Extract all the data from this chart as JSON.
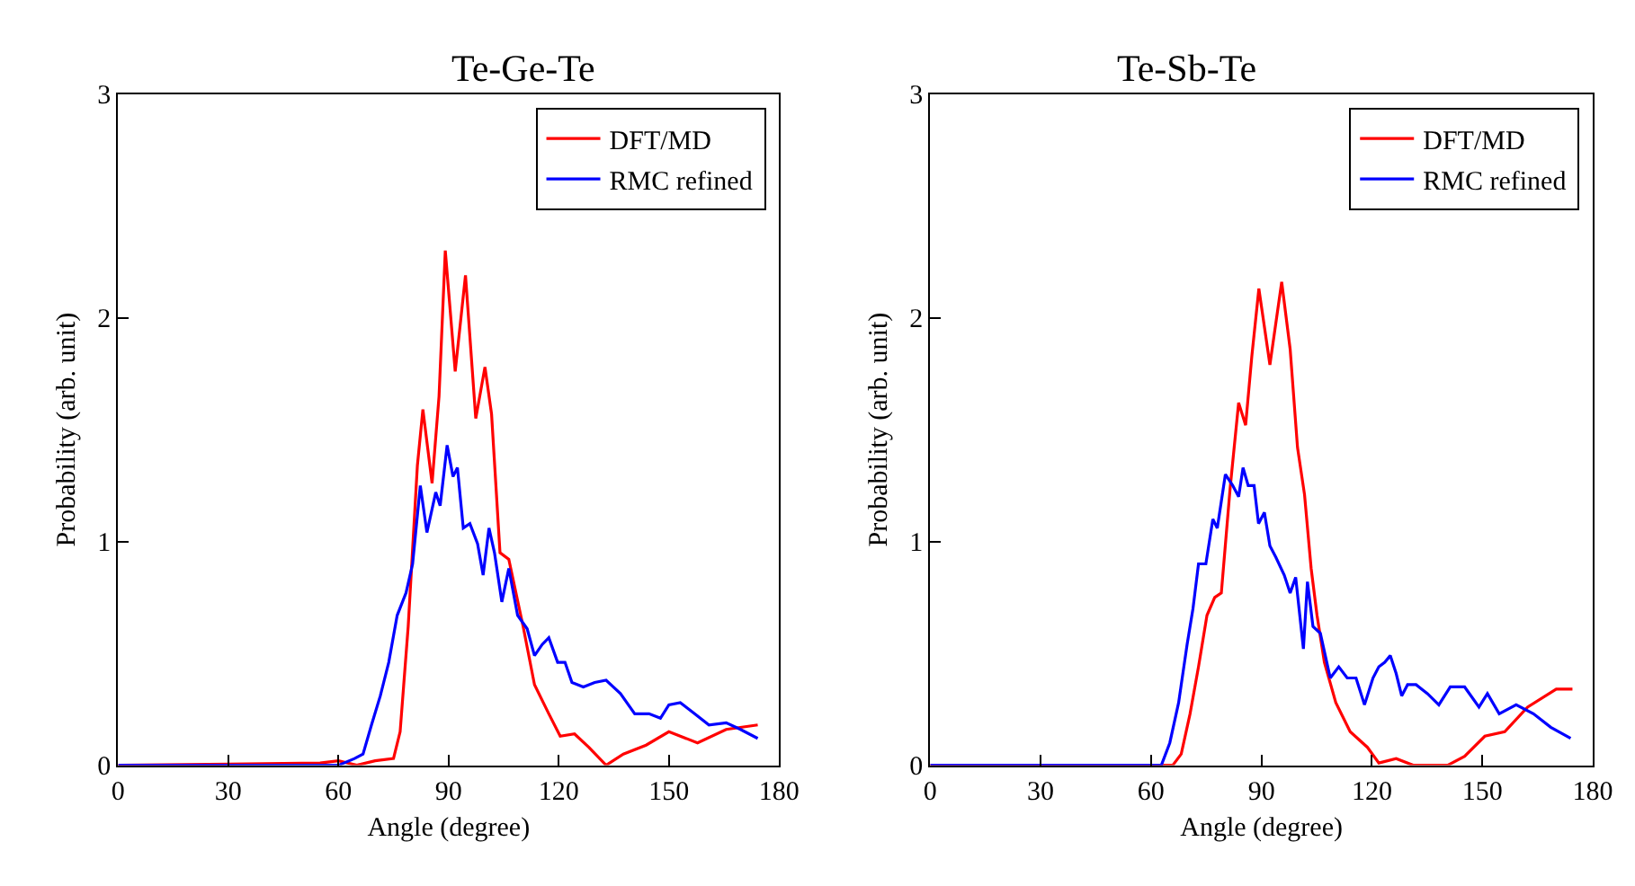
{
  "chart_data": [
    {
      "type": "line",
      "title": "Te-Ge-Te",
      "xlabel": "Angle (degree)",
      "ylabel": "Probability (arb. unit)",
      "xlim": [
        0,
        180
      ],
      "ylim": [
        0,
        3
      ],
      "xticks": [
        0,
        30,
        60,
        90,
        120,
        150,
        180
      ],
      "yticks": [
        0,
        1,
        2,
        3
      ],
      "legend": "top right",
      "line_style": "solid",
      "series": [
        {
          "name": "DFT/MD",
          "color": "#ff0000",
          "x": [
            0,
            55,
            60,
            65,
            70,
            75,
            76.8,
            79,
            81.5,
            83,
            85.5,
            87.4,
            89.1,
            91.8,
            94.6,
            97.4,
            99.9,
            101.7,
            104,
            106.4,
            110.3,
            113.4,
            117.3,
            120.4,
            124.3,
            128.2,
            132.9,
            137.6,
            143.8,
            150,
            157.8,
            165.6,
            174.2
          ],
          "values": [
            0,
            0.01,
            0.02,
            0,
            0.02,
            0.03,
            0.15,
            0.62,
            1.34,
            1.59,
            1.26,
            1.65,
            2.3,
            1.76,
            2.19,
            1.55,
            1.78,
            1.57,
            0.95,
            0.92,
            0.62,
            0.36,
            0.23,
            0.13,
            0.14,
            0.08,
            0,
            0.05,
            0.09,
            0.15,
            0.1,
            0.16,
            0.18
          ]
        },
        {
          "name": "RMC refined",
          "color": "#0000ff",
          "x": [
            0,
            60,
            64.4,
            66.7,
            69,
            71.4,
            73.7,
            76,
            78.4,
            80.2,
            82.3,
            84.1,
            86.5,
            87.7,
            89.6,
            91.2,
            92.4,
            94,
            95.8,
            97.9,
            99.4,
            101,
            102.5,
            104.5,
            106.4,
            108.8,
            111.4,
            113.4,
            115.5,
            117.3,
            119.7,
            121.7,
            123.6,
            126.7,
            129.8,
            132.9,
            136.8,
            140.7,
            144.6,
            147.7,
            150,
            153.1,
            157,
            160.9,
            165.6,
            169.5,
            174.2
          ],
          "values": [
            0,
            0,
            0.03,
            0.05,
            0.18,
            0.31,
            0.46,
            0.67,
            0.77,
            0.9,
            1.25,
            1.04,
            1.22,
            1.16,
            1.43,
            1.29,
            1.33,
            1.06,
            1.08,
            0.99,
            0.85,
            1.06,
            0.95,
            0.73,
            0.88,
            0.67,
            0.61,
            0.49,
            0.54,
            0.57,
            0.46,
            0.46,
            0.37,
            0.35,
            0.37,
            0.38,
            0.32,
            0.23,
            0.23,
            0.21,
            0.27,
            0.28,
            0.23,
            0.18,
            0.19,
            0.16,
            0.12
          ]
        }
      ]
    },
    {
      "type": "line",
      "title": "Te-Sb-Te",
      "xlabel": "Angle (degree)",
      "ylabel": "Probability (arb. unit)",
      "xlim": [
        0,
        180
      ],
      "ylim": [
        0,
        3
      ],
      "xticks": [
        0,
        30,
        60,
        90,
        120,
        150,
        180
      ],
      "yticks": [
        0,
        1,
        2,
        3
      ],
      "legend": "top right",
      "line_style": "solid",
      "series": [
        {
          "name": "DFT/MD",
          "color": "#ff0000",
          "x": [
            0,
            65.9,
            68.2,
            70.6,
            72.9,
            75.2,
            77.3,
            79.1,
            81.5,
            83.8,
            85.7,
            87.4,
            89.3,
            92.3,
            95.5,
            97.8,
            99.8,
            101.7,
            103.5,
            105.1,
            107.1,
            110.2,
            114.1,
            118.8,
            121.9,
            126.6,
            131.2,
            140.6,
            145.2,
            150.7,
            156.1,
            162.3,
            170.1,
            174.5
          ],
          "values": [
            0,
            0,
            0.05,
            0.23,
            0.44,
            0.67,
            0.75,
            0.77,
            1.24,
            1.62,
            1.52,
            1.83,
            2.13,
            1.79,
            2.16,
            1.86,
            1.42,
            1.21,
            0.88,
            0.67,
            0.46,
            0.28,
            0.15,
            0.08,
            0.01,
            0.03,
            0,
            0,
            0.04,
            0.13,
            0.15,
            0.26,
            0.34,
            0.34
          ]
        },
        {
          "name": "RMC refined",
          "color": "#0000ff",
          "x": [
            0,
            62.8,
            65.1,
            67.5,
            69.8,
            71.4,
            72.9,
            74.9,
            76.8,
            78,
            80.2,
            82.2,
            83.8,
            85,
            86.4,
            88,
            89.2,
            90.8,
            92.3,
            93.9,
            96.2,
            97.8,
            99.3,
            101.4,
            102.5,
            104,
            106,
            108.7,
            111,
            113.3,
            115.7,
            118,
            120.3,
            121.9,
            123.5,
            125,
            126.6,
            128.1,
            129.7,
            132,
            135.1,
            138.2,
            141.3,
            145.2,
            149.1,
            151.4,
            154.6,
            159.2,
            163.9,
            168.6,
            174
          ],
          "values": [
            0,
            0,
            0.1,
            0.28,
            0.54,
            0.7,
            0.9,
            0.9,
            1.1,
            1.06,
            1.3,
            1.25,
            1.2,
            1.33,
            1.25,
            1.25,
            1.08,
            1.13,
            0.98,
            0.93,
            0.85,
            0.77,
            0.84,
            0.52,
            0.82,
            0.62,
            0.59,
            0.39,
            0.44,
            0.39,
            0.39,
            0.27,
            0.39,
            0.44,
            0.46,
            0.49,
            0.41,
            0.31,
            0.36,
            0.36,
            0.32,
            0.27,
            0.35,
            0.35,
            0.26,
            0.32,
            0.23,
            0.27,
            0.23,
            0.17,
            0.12
          ]
        }
      ]
    }
  ]
}
